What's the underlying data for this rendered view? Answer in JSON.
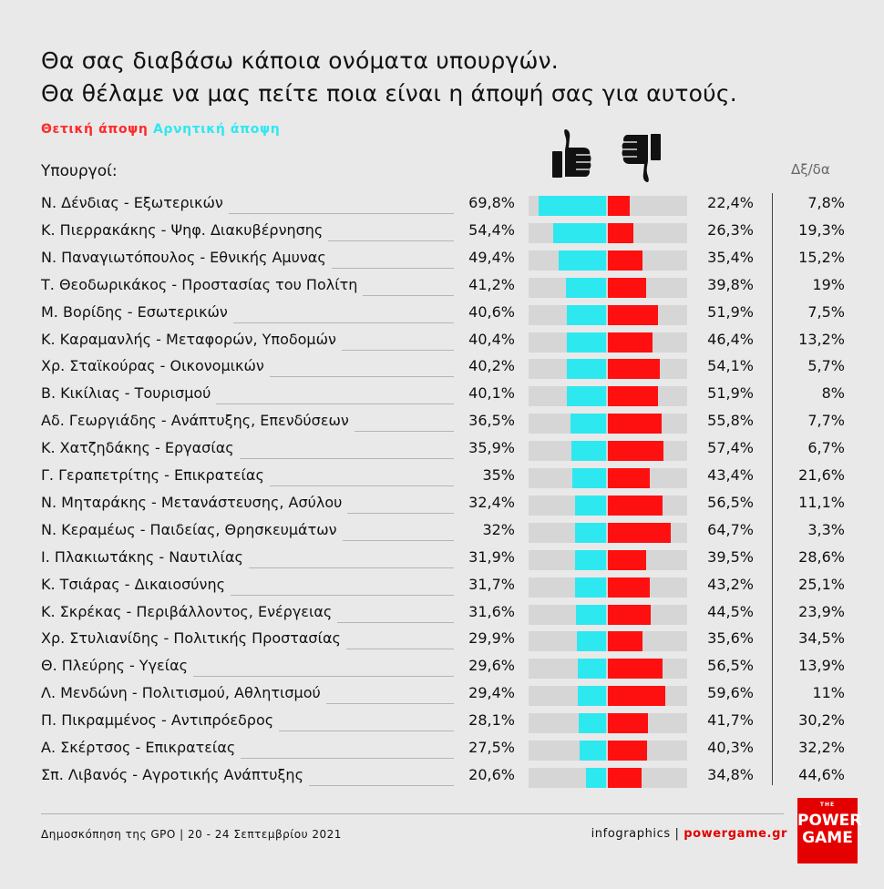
{
  "title_line1": "Θα σας διαβάσω κάποια ονόματα υπουργών.",
  "title_line2": "Θα θέλαμε να μας πείτε ποια είναι η άποψή σας για αυτούς.",
  "legend": {
    "positive": "Θετική άποψη",
    "negative": "Αρνητική άποψη"
  },
  "headers": {
    "ministers": "Υπουργοί:",
    "dk": "Δξ/δα"
  },
  "icons": {
    "positive": "thumbs-up-icon",
    "negative": "thumbs-down-icon"
  },
  "colors": {
    "positive_bar": "#2ee8f0",
    "negative_bar": "#ff1010",
    "bar_bg": "#d6d6d6",
    "brand": "#e40000"
  },
  "footer": {
    "source": "Δημοσκόπηση της GPO | 20 - 24 Σεπτεμβρίου 2021",
    "credit_prefix": "infographics | ",
    "credit_site": "powergame.gr"
  },
  "logo": {
    "the": "THE",
    "line1": "POWER",
    "line2": "GAME"
  },
  "chart_data": {
    "type": "bar",
    "title": "Θα σας διαβάσω κάποια ονόματα υπουργών. Θα θέλαμε να μας πείτε ποια είναι η άποψή σας για αυτούς.",
    "categories": [
      "Ν. Δένδιας - Εξωτερικών",
      "Κ. Πιερρακάκης - Ψηφ. Διακυβέρνησης",
      "Ν. Παναγιωτόπουλος - Εθνικής Αμυνας",
      "Τ. Θεοδωρικάκος - Προστασίας του Πολίτη",
      "Μ. Βορίδης - Εσωτερικών",
      "Κ. Καραμανλής - Μεταφορών, Υποδομών",
      "Χρ. Σταϊκούρας - Οικονομικών",
      "Β. Κικίλιας - Τουρισμού",
      "Αδ. Γεωργιάδης - Ανάπτυξης, Επενδύσεων",
      "Κ. Χατζηδάκης - Εργασίας",
      "Γ. Γεραπετρίτης - Επικρατείας",
      "Ν. Μηταράκης - Μετανάστευσης, Ασύλου",
      "Ν. Κεραμέως - Παιδείας, Θρησκευμάτων",
      "Ι. Πλακιωτάκης - Ναυτιλίας",
      "Κ. Τσιάρας - Δικαιοσύνης",
      "Κ. Σκρέκας - Περιβάλλοντος, Ενέργειας",
      "Χρ. Στυλιανίδης - Πολιτικής Προστασίας",
      "Θ. Πλεύρης - Υγείας",
      "Λ. Μενδώνη - Πολιτισμού, Αθλητισμού",
      "Π. Πικραμμένος - Αντιπρόεδρος",
      "Α. Σκέρτσος - Επικρατείας",
      "Σπ. Λιβανός - Αγροτικής Ανάπτυξης"
    ],
    "series": [
      {
        "name": "Θετική άποψη",
        "values": [
          69.8,
          54.4,
          49.4,
          41.2,
          40.6,
          40.4,
          40.2,
          40.1,
          36.5,
          35.9,
          35,
          32.4,
          32,
          31.9,
          31.7,
          31.6,
          29.9,
          29.6,
          29.4,
          28.1,
          27.5,
          20.6
        ],
        "labels": [
          "69,8%",
          "54,4%",
          "49,4%",
          "41,2%",
          "40,6%",
          "40,4%",
          "40,2%",
          "40,1%",
          "36,5%",
          "35,9%",
          "35%",
          "32,4%",
          "32%",
          "31,9%",
          "31,7%",
          "31,6%",
          "29,9%",
          "29,6%",
          "29,4%",
          "28,1%",
          "27,5%",
          "20,6%"
        ]
      },
      {
        "name": "Αρνητική άποψη",
        "values": [
          22.4,
          26.3,
          35.4,
          39.8,
          51.9,
          46.4,
          54.1,
          51.9,
          55.8,
          57.4,
          43.4,
          56.5,
          64.7,
          39.5,
          43.2,
          44.5,
          35.6,
          56.5,
          59.6,
          41.7,
          40.3,
          34.8
        ],
        "labels": [
          "22,4%",
          "26,3%",
          "35,4%",
          "39,8%",
          "51,9%",
          "46,4%",
          "54,1%",
          "51,9%",
          "55,8%",
          "57,4%",
          "43,4%",
          "56,5%",
          "64,7%",
          "39,5%",
          "43,2%",
          "44,5%",
          "35,6%",
          "56,5%",
          "59,6%",
          "41,7%",
          "40,3%",
          "34,8%"
        ]
      },
      {
        "name": "Δξ/δα",
        "values": [
          7.8,
          19.3,
          15.2,
          19,
          7.5,
          13.2,
          5.7,
          8,
          7.7,
          6.7,
          21.6,
          11.1,
          3.3,
          28.6,
          25.1,
          23.9,
          34.5,
          13.9,
          11,
          30.2,
          32.2,
          44.6
        ],
        "labels": [
          "7,8%",
          "19,3%",
          "15,2%",
          "19%",
          "7,5%",
          "13,2%",
          "5,7%",
          "8%",
          "7,7%",
          "6,7%",
          "21,6%",
          "11,1%",
          "3,3%",
          "28,6%",
          "25,1%",
          "23,9%",
          "34,5%",
          "13,9%",
          "11%",
          "30,2%",
          "32,2%",
          "44,6%"
        ]
      }
    ],
    "xlim": [
      0,
      100
    ]
  }
}
